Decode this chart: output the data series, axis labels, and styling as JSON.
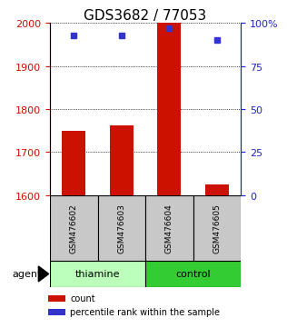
{
  "title": "GDS3682 / 77053",
  "samples": [
    "GSM476602",
    "GSM476603",
    "GSM476604",
    "GSM476605"
  ],
  "count_values": [
    1750,
    1762,
    2000,
    1625
  ],
  "percentile_values": [
    93,
    93,
    97,
    90
  ],
  "ylim_left": [
    1600,
    2000
  ],
  "ylim_right": [
    0,
    100
  ],
  "yticks_left": [
    1600,
    1700,
    1800,
    1900,
    2000
  ],
  "yticks_right": [
    0,
    25,
    50,
    75,
    100
  ],
  "ytick_labels_right": [
    "0",
    "25",
    "50",
    "75",
    "100%"
  ],
  "bar_color": "#cc1100",
  "dot_color": "#3333cc",
  "bar_width": 0.5,
  "groups": [
    {
      "label": "thiamine",
      "samples": [
        0,
        1
      ],
      "color": "#bbffbb"
    },
    {
      "label": "control",
      "samples": [
        2,
        3
      ],
      "color": "#33cc33"
    }
  ],
  "agent_label": "agent",
  "legend_count_label": "count",
  "legend_pct_label": "percentile rank within the sample",
  "bg_sample_row": "#c8c8c8",
  "left_tick_color": "#cc1100",
  "right_tick_color": "#2222cc",
  "title_fontsize": 11,
  "axis_fontsize": 8,
  "sample_fontsize": 6.5,
  "group_fontsize": 8,
  "legend_fontsize": 7,
  "agent_fontsize": 8
}
